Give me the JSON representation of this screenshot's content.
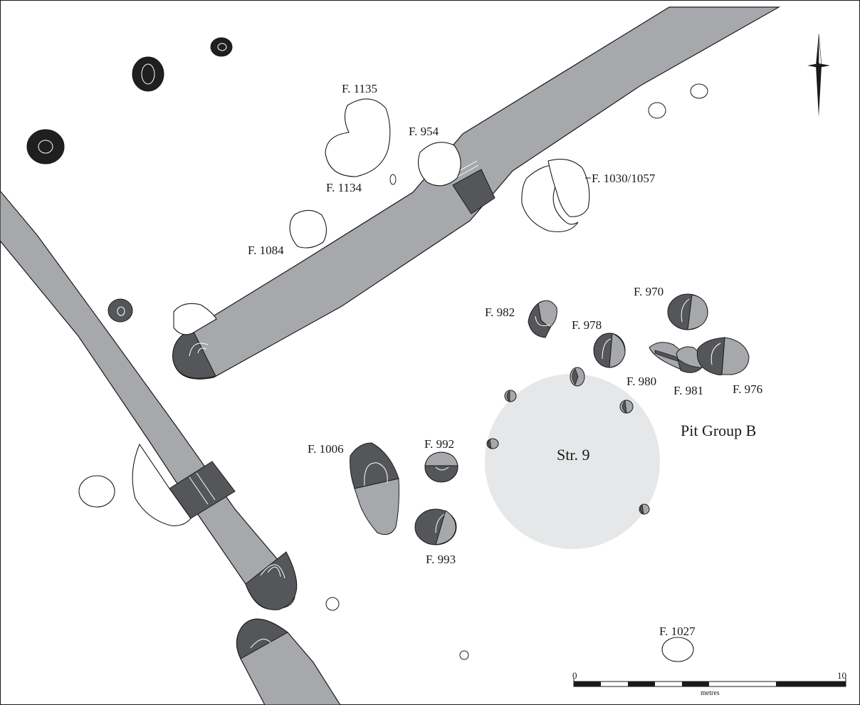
{
  "colors": {
    "fill": "#a6a8ab",
    "section": "#545659",
    "dark": "#1f1f1f",
    "structure": "#e6e7e8",
    "outline": "#1a1a1a",
    "paper": "#ffffff"
  },
  "feature_labels": {
    "f1135": "F. 1135",
    "f954": "F. 954",
    "f1134": "F. 1134",
    "f1030": "F. 1030/1057",
    "f1084": "F. 1084",
    "f982": "F. 982",
    "f970": "F. 970",
    "f978": "F. 978",
    "f980": "F. 980",
    "f981": "F. 981",
    "f976": "F. 976",
    "f1006": "F. 1006",
    "f992": "F. 992",
    "f993": "F. 993",
    "f1027": "F. 1027"
  },
  "structure_label": "Str. 9",
  "group_label": "Pit Group B",
  "scale": {
    "start": "0",
    "end": "10",
    "unit": "metres"
  },
  "north_arrow": "north-arrow-icon"
}
